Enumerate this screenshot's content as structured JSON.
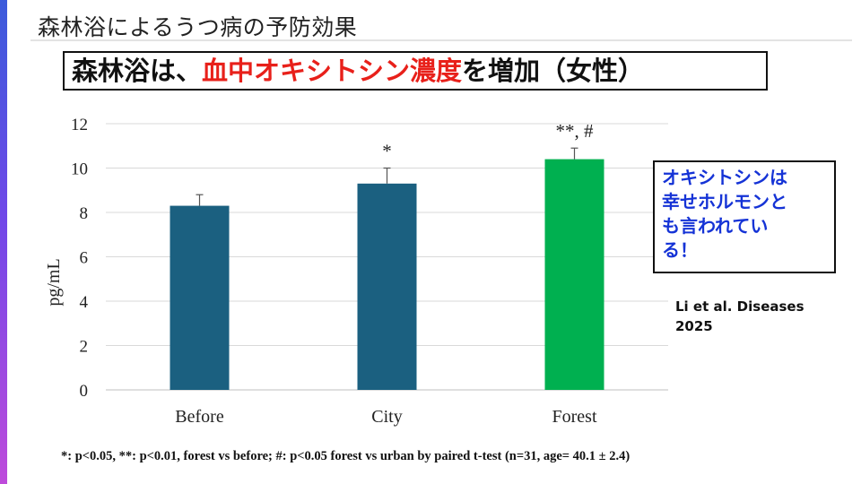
{
  "slide": {
    "title": "森林浴によるうつ病の予防効果",
    "headline_pre": "森林浴は、",
    "headline_highlight": "血中オキシトシン濃度",
    "headline_post": "を増加（女性）",
    "callout_lines": [
      "オキシトシンは",
      "幸せホルモンと",
      "も言われてい",
      "る！"
    ],
    "citation_lines": [
      "Li et al. Diseases",
      "2025"
    ],
    "footnote": "*: p<0.05, **: p<0.01, forest vs before; #: p<0.05 forest vs urban by paired t-test (n=31, age= 40.1 ± 2.4)"
  },
  "colors": {
    "headline_highlight": "#e8201a",
    "callout_text": "#1533d6",
    "bar_before": "#1b6080",
    "bar_city": "#1b6080",
    "bar_forest": "#00b050"
  },
  "chart_data": {
    "type": "bar",
    "categories": [
      "Before",
      "City",
      "Forest"
    ],
    "values": [
      8.3,
      9.3,
      10.4
    ],
    "error_upper": [
      0.5,
      0.7,
      0.5
    ],
    "significance": [
      "",
      "*",
      "**, #"
    ],
    "title": "",
    "xlabel": "",
    "ylabel": "pg/mL",
    "ylim": [
      0,
      12
    ],
    "yticks": [
      0,
      2,
      4,
      6,
      8,
      10,
      12
    ],
    "grid": true,
    "legend": "none"
  }
}
